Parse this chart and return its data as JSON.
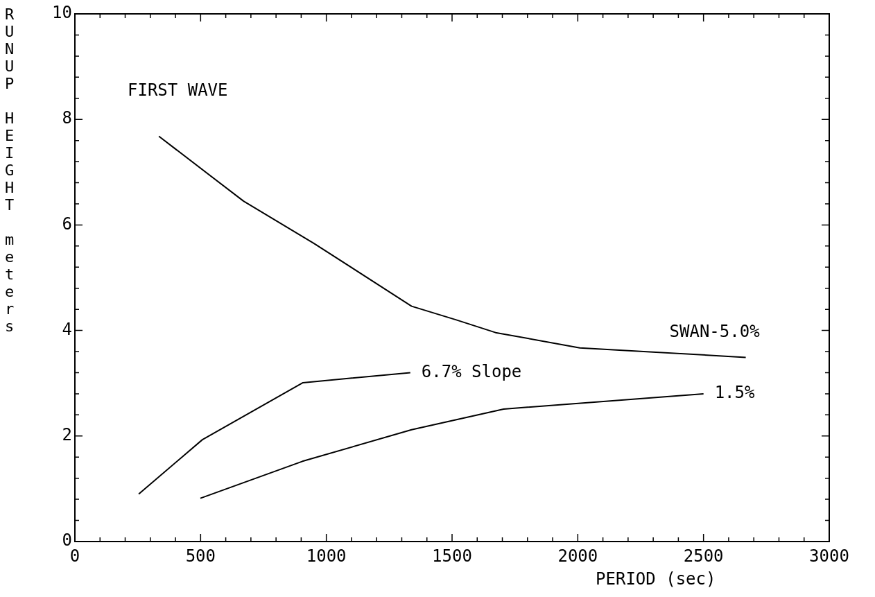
{
  "chart_data": {
    "type": "line",
    "xlabel": "PERIOD (sec)",
    "ylabel": "RUNUP HEIGHT meters",
    "annotations": [
      "FIRST WAVE"
    ],
    "xlim": [
      0,
      3000
    ],
    "ylim": [
      0,
      10
    ],
    "xticks": [
      0,
      {
        "value": 100,
        "label": null
      },
      {
        "value": 200,
        "label": null
      },
      {
        "value": 300,
        "label": null
      },
      {
        "value": 400,
        "label": null
      },
      500,
      {
        "value": 600,
        "label": null
      },
      {
        "value": 700,
        "label": null
      },
      {
        "value": 800,
        "label": null
      },
      {
        "value": 900,
        "label": null
      },
      1000,
      {
        "value": 1100,
        "label": null
      },
      {
        "value": 1200,
        "label": null
      },
      {
        "value": 1300,
        "label": null
      },
      {
        "value": 1400,
        "label": null
      },
      1500,
      {
        "value": 1600,
        "label": null
      },
      {
        "value": 1700,
        "label": null
      },
      {
        "value": 1800,
        "label": null
      },
      {
        "value": 1900,
        "label": null
      },
      2000,
      {
        "value": 2100,
        "label": null
      },
      {
        "value": 2200,
        "label": null
      },
      {
        "value": 2300,
        "label": null
      },
      {
        "value": 2400,
        "label": null
      },
      2500,
      {
        "value": 2600,
        "label": null
      },
      {
        "value": 2700,
        "label": null
      },
      {
        "value": 2800,
        "label": null
      },
      {
        "value": 2900,
        "label": null
      },
      3000
    ],
    "yticks": [
      0,
      {
        "value": 0.4,
        "label": null
      },
      {
        "value": 0.8,
        "label": null
      },
      {
        "value": 1.2,
        "label": null
      },
      {
        "value": 1.6,
        "label": null
      },
      2,
      {
        "value": 2.4,
        "label": null
      },
      {
        "value": 2.8,
        "label": null
      },
      {
        "value": 3.2,
        "label": null
      },
      {
        "value": 3.6,
        "label": null
      },
      4,
      {
        "value": 4.4,
        "label": null
      },
      {
        "value": 4.8,
        "label": null
      },
      {
        "value": 5.2,
        "label": null
      },
      {
        "value": 5.6,
        "label": null
      },
      6,
      {
        "value": 6.4,
        "label": null
      },
      {
        "value": 6.8,
        "label": null
      },
      {
        "value": 7.2,
        "label": null
      },
      {
        "value": 7.6,
        "label": null
      },
      8,
      {
        "value": 8.4,
        "label": null
      },
      {
        "value": 8.8,
        "label": null
      },
      {
        "value": 9.2,
        "label": null
      },
      {
        "value": 9.6,
        "label": null
      },
      10
    ],
    "grid": false,
    "legend": false,
    "marker": "none",
    "line_style": "solid",
    "series": [
      {
        "name": "SWAN-5.0%",
        "color": "#000000",
        "x": [
          334,
          671,
          951,
          1339,
          1517,
          1673,
          2008,
          2668
        ],
        "values": [
          7.68,
          6.45,
          5.65,
          4.46,
          4.2,
          3.96,
          3.67,
          3.49
        ]
      },
      {
        "name": "6.7% Slope",
        "color": "#000000",
        "x": [
          254,
          507,
          907,
          1334
        ],
        "values": [
          0.9,
          1.93,
          3.01,
          3.2
        ]
      },
      {
        "name": "1.5%",
        "color": "#000000",
        "x": [
          499,
          905,
          1339,
          1705,
          2500
        ],
        "values": [
          0.82,
          1.52,
          2.12,
          2.51,
          2.8
        ]
      }
    ]
  }
}
